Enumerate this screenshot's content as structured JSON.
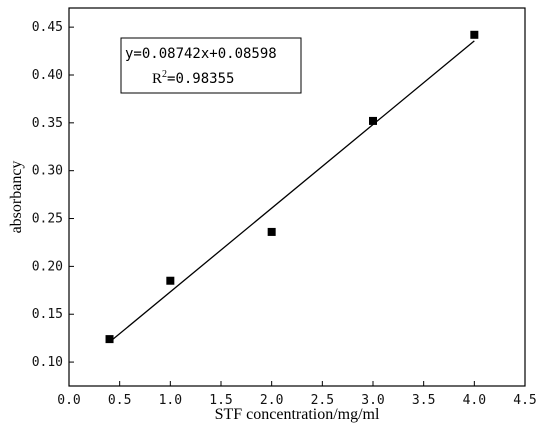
{
  "chart_data": {
    "type": "scatter",
    "xlabel": "STF concentration/mg/ml",
    "ylabel": "absorbancy",
    "xlim": [
      0.0,
      4.5
    ],
    "ylim": [
      0.075,
      0.47
    ],
    "x_ticks": [
      "0.0",
      "0.5",
      "1.0",
      "1.5",
      "2.0",
      "2.5",
      "3.0",
      "3.5",
      "4.0",
      "4.5"
    ],
    "y_ticks": [
      "0.10",
      "0.15",
      "0.20",
      "0.25",
      "0.30",
      "0.35",
      "0.40",
      "0.45"
    ],
    "grid": false,
    "series": [
      {
        "marker": "square",
        "color": "#000000",
        "x": [
          0.4,
          1.0,
          2.0,
          3.0,
          4.0
        ],
        "y": [
          0.124,
          0.185,
          0.236,
          0.352,
          0.442
        ]
      }
    ],
    "fit_line": {
      "slope": 0.08742,
      "intercept": 0.08598,
      "x_range": [
        0.4,
        4.0
      ],
      "color": "#000000"
    },
    "annotation": {
      "equation": "y=0.08742x+0.08598",
      "r2_prefix": "R",
      "r2_sup": "2",
      "r2_value": "=0.98355"
    }
  }
}
